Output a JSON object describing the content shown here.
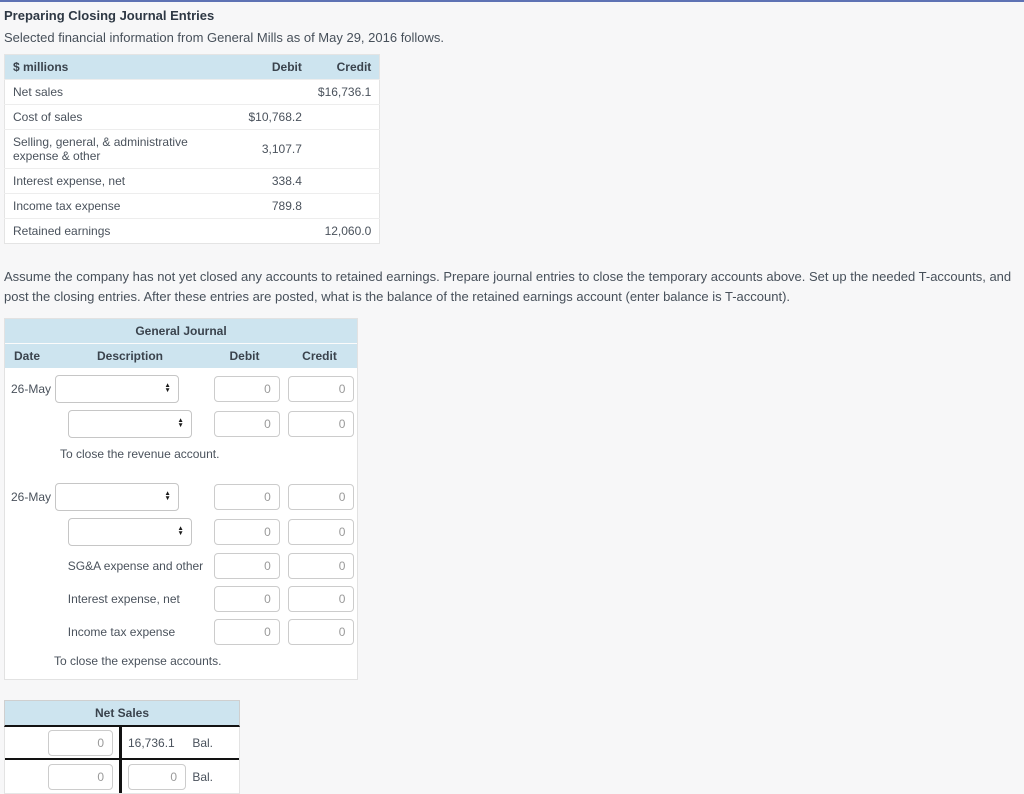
{
  "page": {
    "title": "Preparing Closing Journal Entries",
    "intro": "Selected financial information from General Mills as of May 29, 2016 follows.",
    "instructions": "Assume the company has not yet closed any accounts to retained earnings. Prepare journal entries to close the temporary accounts above. Set up the needed T-accounts, and post the closing entries. After these entries are posted, what is the balance of the retained earnings account (enter balance is T-account)."
  },
  "colors": {
    "header_blue": "#cde4ef",
    "top_border_blue": "#5e72b4",
    "page_background": "#f7f7f8",
    "t_account_line": "#121212"
  },
  "icons": {
    "select_up": "▲",
    "select_down": "▼"
  },
  "financial_table": {
    "col_label": "$ millions",
    "col_debit": "Debit",
    "col_credit": "Credit",
    "rows": [
      {
        "label": "Net sales",
        "debit": "",
        "credit": "$16,736.1"
      },
      {
        "label": "Cost of sales",
        "debit": "$10,768.2",
        "credit": ""
      },
      {
        "label": "Selling, general, & administrative expense & other",
        "debit": "3,107.7",
        "credit": ""
      },
      {
        "label": "Interest expense, net",
        "debit": "338.4",
        "credit": ""
      },
      {
        "label": "Income tax expense",
        "debit": "789.8",
        "credit": ""
      },
      {
        "label": "Retained earnings",
        "debit": "",
        "credit": "12,060.0"
      }
    ]
  },
  "journal": {
    "title": "General Journal",
    "col_date": "Date",
    "col_description": "Description",
    "col_debit": "Debit",
    "col_credit": "Credit",
    "entries": [
      {
        "date": "26-May",
        "rows": [
          {
            "kind": "select",
            "debit": "0",
            "credit": "0"
          },
          {
            "kind": "select",
            "debit": "0",
            "credit": "0"
          }
        ],
        "memo": "To close the revenue account."
      },
      {
        "date": "26-May",
        "rows": [
          {
            "kind": "select",
            "debit": "0",
            "credit": "0"
          },
          {
            "kind": "select",
            "debit": "0",
            "credit": "0"
          },
          {
            "kind": "label",
            "label": "SG&A expense and other",
            "debit": "0",
            "credit": "0"
          },
          {
            "kind": "label",
            "label": "Interest expense, net",
            "debit": "0",
            "credit": "0"
          },
          {
            "kind": "label",
            "label": "Income tax expense",
            "debit": "0",
            "credit": "0"
          }
        ],
        "memo": "To close the expense accounts."
      }
    ]
  },
  "t_account": {
    "title": "Net Sales",
    "row1": {
      "debit_input": "0",
      "credit_balance": "16,736.1",
      "balance_label": "Bal."
    },
    "row2": {
      "debit_input": "0",
      "credit_input": "0",
      "balance_label": "Bal."
    }
  }
}
